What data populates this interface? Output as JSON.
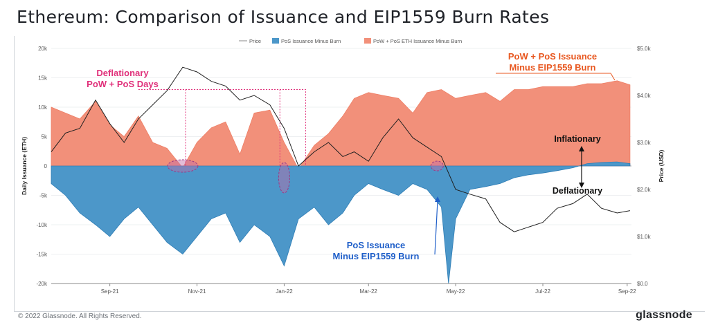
{
  "header": {
    "title": "Ethereum: Comparison of Issuance and EIP1559 Burn Rates"
  },
  "footer": {
    "copyright": "© 2022 Glassnode. All Rights Reserved.",
    "brand": "glassnode",
    "watermark": "glassnode"
  },
  "colors": {
    "positive_fill": "#f2907a",
    "negative_fill": "#4c97c9",
    "negative_stroke": "#2f7db5",
    "price_line": "#202020",
    "pink_annotation": "#e0307a",
    "orange_annotation": "#e8571f",
    "blue_annotation": "#1f5fc9",
    "highlight": "#c06aa6"
  },
  "annotations": {
    "deflationary_days": [
      "Deflationary",
      "PoW + PoS Days"
    ],
    "pow_pos_issuance": [
      "PoW + PoS Issuance",
      "Minus EIP1559 Burn"
    ],
    "pos_issuance": [
      "PoS Issuance",
      "Minus EIP1559 Burn"
    ],
    "inflationary": "Inflationary",
    "deflationary": "Deflationary"
  },
  "chart_data": {
    "type": "area",
    "x_ticks": [
      "Sep-21",
      "Nov-21",
      "Jan-22",
      "Mar-22",
      "May-22",
      "Jul-22",
      "Sep-22"
    ],
    "y_left": {
      "label": "Daily Issuance (ETH)",
      "range": [
        -20000,
        20000
      ],
      "ticks": [
        "20k",
        "15k",
        "10k",
        "5k",
        "0",
        "-5k",
        "-10k",
        "-15k",
        "-20k"
      ]
    },
    "y_right": {
      "label": "Price (USD)",
      "range": [
        0,
        5000
      ],
      "ticks": [
        "$5.0k",
        "$4.0k",
        "$3.0k",
        "$2.0k",
        "$1.0k",
        "$0.0"
      ]
    },
    "legend": {
      "placement": "top-center",
      "items": [
        "Price",
        "PoS Issuance Minus Burn",
        "PoW + PoS ETH Issuance Minus Burn"
      ]
    },
    "series": [
      {
        "name": "PoW + PoS ETH Issuance Minus Burn",
        "axis": "left",
        "dates": [
          "2021-08-05",
          "2021-08-15",
          "2021-08-25",
          "2021-09-05",
          "2021-09-15",
          "2021-09-25",
          "2021-10-05",
          "2021-10-15",
          "2021-10-25",
          "2021-11-05",
          "2021-11-15",
          "2021-11-25",
          "2021-12-05",
          "2021-12-15",
          "2021-12-25",
          "2022-01-05",
          "2022-01-15",
          "2022-01-25",
          "2022-02-05",
          "2022-02-15",
          "2022-02-25",
          "2022-03-05",
          "2022-03-15",
          "2022-03-25",
          "2022-04-05",
          "2022-04-15",
          "2022-04-25",
          "2022-05-05",
          "2022-05-15",
          "2022-05-25",
          "2022-06-05",
          "2022-06-15",
          "2022-06-25",
          "2022-07-05",
          "2022-07-15",
          "2022-07-25",
          "2022-08-05",
          "2022-08-15",
          "2022-08-25",
          "2022-09-05",
          "2022-09-14"
        ],
        "values": [
          10000,
          9000,
          8000,
          11000,
          7000,
          5000,
          8500,
          4000,
          3000,
          -300,
          4000,
          6500,
          7500,
          2000,
          9000,
          9500,
          4000,
          -500,
          3500,
          5500,
          8500,
          11500,
          12500,
          12000,
          11500,
          9000,
          12500,
          13000,
          11500,
          12000,
          12500,
          11000,
          13000,
          13000,
          13500,
          13500,
          13500,
          14000,
          14000,
          14500,
          13800
        ]
      },
      {
        "name": "PoS Issuance Minus Burn",
        "axis": "left",
        "dates": [
          "2021-08-05",
          "2021-08-15",
          "2021-08-25",
          "2021-09-05",
          "2021-09-15",
          "2021-09-25",
          "2021-10-05",
          "2021-10-15",
          "2021-10-25",
          "2021-11-05",
          "2021-11-15",
          "2021-11-25",
          "2021-12-05",
          "2021-12-15",
          "2021-12-25",
          "2022-01-05",
          "2022-01-15",
          "2022-01-25",
          "2022-02-05",
          "2022-02-15",
          "2022-02-25",
          "2022-03-05",
          "2022-03-15",
          "2022-03-25",
          "2022-04-05",
          "2022-04-15",
          "2022-04-25",
          "2022-05-05",
          "2022-05-10",
          "2022-05-15",
          "2022-05-25",
          "2022-06-05",
          "2022-06-15",
          "2022-06-25",
          "2022-07-05",
          "2022-07-15",
          "2022-07-25",
          "2022-08-05",
          "2022-08-15",
          "2022-08-25",
          "2022-09-05",
          "2022-09-14"
        ],
        "values": [
          -3000,
          -5000,
          -8000,
          -10000,
          -12000,
          -9000,
          -7000,
          -10000,
          -13000,
          -15000,
          -12000,
          -9000,
          -8000,
          -13000,
          -10000,
          -12000,
          -17000,
          -9000,
          -7000,
          -10000,
          -8000,
          -5000,
          -3000,
          -4000,
          -5000,
          -3000,
          -4000,
          -7000,
          -20000,
          -9000,
          -4000,
          -3500,
          -3000,
          -2000,
          -1500,
          -1200,
          -800,
          -300,
          400,
          600,
          700,
          400
        ]
      },
      {
        "name": "Price",
        "axis": "right",
        "dates": [
          "2021-08-05",
          "2021-08-15",
          "2021-08-25",
          "2021-09-05",
          "2021-09-15",
          "2021-09-25",
          "2021-10-05",
          "2021-10-15",
          "2021-10-25",
          "2021-11-05",
          "2021-11-15",
          "2021-11-25",
          "2021-12-05",
          "2021-12-15",
          "2021-12-25",
          "2022-01-05",
          "2022-01-15",
          "2022-01-25",
          "2022-02-05",
          "2022-02-15",
          "2022-02-25",
          "2022-03-05",
          "2022-03-15",
          "2022-03-25",
          "2022-04-05",
          "2022-04-15",
          "2022-04-25",
          "2022-05-05",
          "2022-05-15",
          "2022-05-25",
          "2022-06-05",
          "2022-06-15",
          "2022-06-25",
          "2022-07-05",
          "2022-07-15",
          "2022-07-25",
          "2022-08-05",
          "2022-08-15",
          "2022-08-25",
          "2022-09-05",
          "2022-09-14"
        ],
        "values": [
          2800,
          3200,
          3300,
          3900,
          3400,
          3000,
          3500,
          3800,
          4100,
          4600,
          4500,
          4300,
          4200,
          3900,
          4000,
          3800,
          3300,
          2500,
          2800,
          3000,
          2700,
          2800,
          2600,
          3100,
          3500,
          3100,
          2900,
          2700,
          2000,
          1900,
          1800,
          1300,
          1100,
          1200,
          1300,
          1600,
          1700,
          1900,
          1600,
          1500,
          1550
        ]
      }
    ]
  }
}
